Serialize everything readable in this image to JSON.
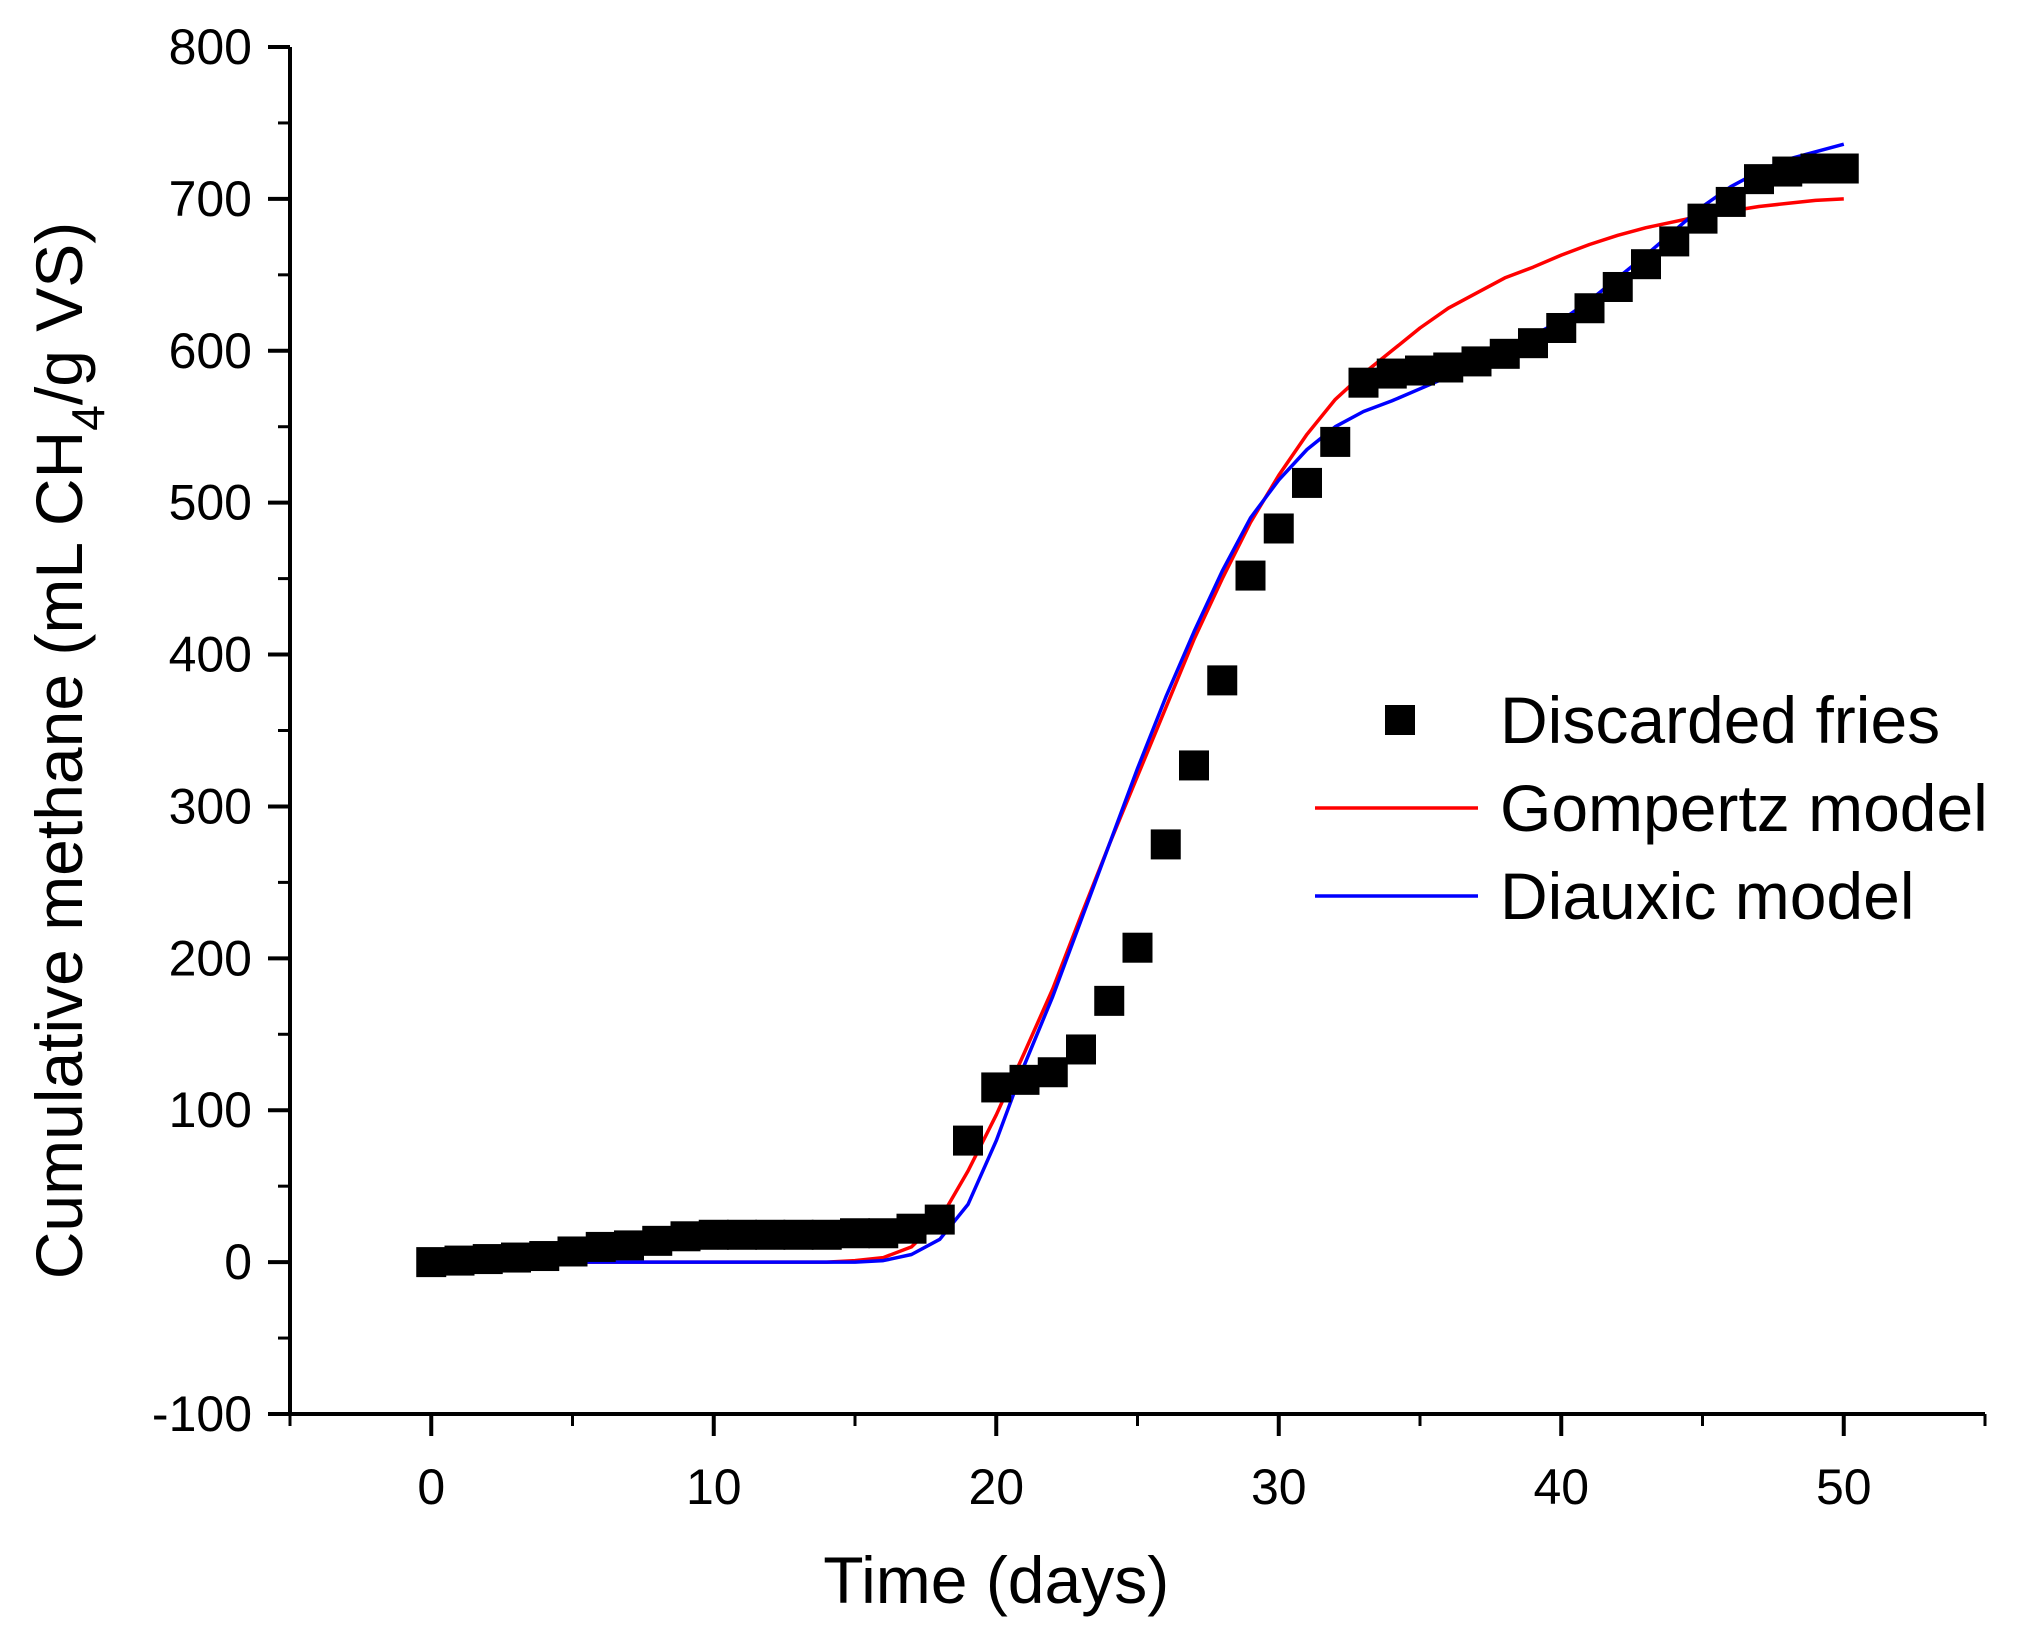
{
  "chart_data": {
    "type": "scatter",
    "title": "",
    "xlabel": "Time (days)",
    "ylabel": {
      "prefix": "Cumulative methane  (mL CH",
      "subscript": "4",
      "suffix": "/g VS)"
    },
    "xlim": [
      -5,
      55
    ],
    "ylim": [
      -100,
      800
    ],
    "x_ticks": [
      0,
      10,
      20,
      30,
      40,
      50
    ],
    "x_tick_labels": [
      "0",
      "10",
      "20",
      "30",
      "40",
      "50"
    ],
    "y_ticks": [
      -100,
      0,
      100,
      200,
      300,
      400,
      500,
      600,
      700,
      800
    ],
    "y_tick_labels": [
      "-100",
      "0",
      "100",
      "200",
      "300",
      "400",
      "500",
      "600",
      "700",
      "800"
    ],
    "grid": false,
    "legend_position": "right-middle",
    "series": [
      {
        "name": "Discarded fries",
        "kind": "scatter",
        "marker": "square",
        "color": "#000000",
        "x": [
          0,
          1,
          2,
          3,
          4,
          5,
          6,
          7,
          8,
          9,
          10,
          11,
          12,
          13,
          14,
          15,
          16,
          17,
          18,
          19,
          20,
          21,
          22,
          23,
          24,
          25,
          26,
          27,
          28,
          29,
          30,
          31,
          32,
          33,
          34,
          35,
          36,
          37,
          38,
          39,
          40,
          41,
          42,
          43,
          44,
          45,
          46,
          47,
          48,
          49,
          50
        ],
        "y": [
          0,
          1,
          2,
          3,
          4,
          7,
          10,
          11,
          14,
          17,
          18,
          18,
          18,
          18,
          18,
          19,
          19,
          22,
          28,
          80,
          115,
          120,
          125,
          140,
          172,
          207,
          275,
          327,
          383,
          452,
          483,
          513,
          540,
          579,
          585,
          587,
          589,
          593,
          598,
          605,
          615,
          628,
          642,
          657,
          672,
          687,
          698,
          713,
          718,
          720,
          720
        ]
      },
      {
        "name": "Gompertz model",
        "kind": "line",
        "color": "#ff0000",
        "x": [
          0,
          1,
          2,
          3,
          4,
          5,
          6,
          7,
          8,
          9,
          10,
          11,
          12,
          13,
          14,
          15,
          16,
          17,
          18,
          19,
          20,
          21,
          22,
          23,
          24,
          25,
          26,
          27,
          28,
          29,
          30,
          31,
          32,
          33,
          34,
          35,
          36,
          37,
          38,
          39,
          40,
          41,
          42,
          43,
          44,
          45,
          46,
          47,
          48,
          49,
          50
        ],
        "y": [
          0,
          0,
          0,
          0,
          0,
          0,
          0,
          0,
          0,
          0,
          0,
          0,
          0,
          0,
          0,
          1,
          3,
          10,
          28,
          60,
          97,
          138,
          180,
          228,
          275,
          320,
          365,
          410,
          450,
          487,
          518,
          545,
          568,
          585,
          600,
          615,
          628,
          638,
          648,
          655,
          663,
          670,
          676,
          681,
          685,
          689,
          692,
          695,
          697,
          699,
          700
        ]
      },
      {
        "name": "Diauxic model",
        "kind": "line",
        "color": "#0000ff",
        "x": [
          0,
          1,
          2,
          3,
          4,
          5,
          6,
          7,
          8,
          9,
          10,
          11,
          12,
          13,
          14,
          15,
          16,
          17,
          18,
          19,
          20,
          21,
          22,
          23,
          24,
          25,
          26,
          27,
          28,
          29,
          30,
          31,
          32,
          33,
          34,
          35,
          36,
          37,
          38,
          39,
          40,
          41,
          42,
          43,
          44,
          45,
          46,
          47,
          48,
          49,
          50
        ],
        "y": [
          0,
          0,
          0,
          0,
          0,
          0,
          0,
          0,
          0,
          0,
          0,
          0,
          0,
          0,
          0,
          0,
          1,
          5,
          15,
          38,
          80,
          130,
          175,
          225,
          275,
          325,
          372,
          415,
          455,
          490,
          515,
          535,
          550,
          560,
          567,
          575,
          583,
          592,
          600,
          610,
          620,
          633,
          648,
          663,
          679,
          695,
          708,
          718,
          726,
          731,
          736
        ]
      }
    ]
  }
}
